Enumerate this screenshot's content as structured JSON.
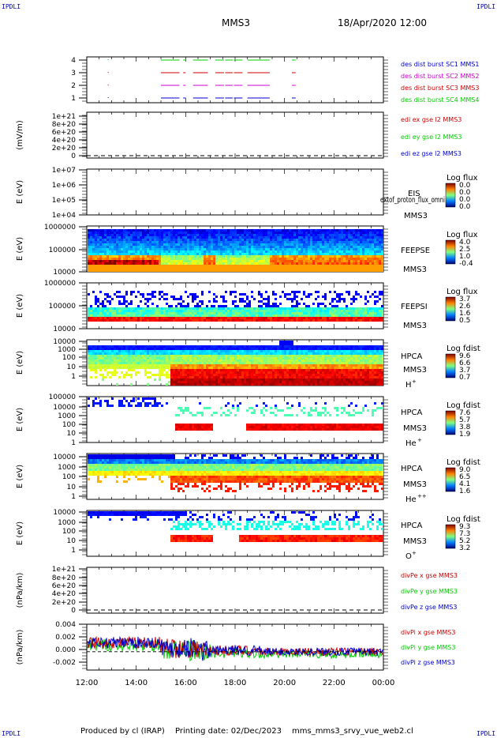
{
  "header": {
    "corner_label": "IPDLI",
    "spacecraft": "MMS3",
    "datetime": "18/Apr/2020 12:00"
  },
  "footer": {
    "produced_by": "Produced by cl (IRAP)",
    "printing_date": "Printing date: 02/Dec/2023",
    "script_name": "mms_mms3_srvy_vue_web2.cl"
  },
  "colors": {
    "mms1": "#0000cc",
    "mms2": "#cc00cc",
    "mms3": "#cc0000",
    "mms4": "#00cc00",
    "x_component": "#cc0000",
    "y_component": "#00cc00",
    "z_component": "#0000cc"
  },
  "chart_data": [
    {
      "type": "line",
      "panel": "burst-availability",
      "y_ticks": [
        "4",
        "3",
        "2",
        "1"
      ],
      "series": [
        {
          "name": "des dist burst SC1 MMS1",
          "level": 1,
          "color": "#0000cc",
          "intervals": [
            [
              15.0,
              15.75
            ],
            [
              15.9,
              16.0
            ],
            [
              16.3,
              16.9
            ],
            [
              17.2,
              17.55
            ],
            [
              17.6,
              17.9
            ],
            [
              17.95,
              18.3
            ],
            [
              18.5,
              19.4
            ],
            [
              20.3,
              20.45
            ]
          ]
        },
        {
          "name": "des dist burst SC2 MMS2",
          "level": 2,
          "color": "#cc00cc",
          "intervals": [
            [
              15.0,
              15.75
            ],
            [
              15.9,
              16.0
            ],
            [
              16.3,
              16.9
            ],
            [
              17.2,
              17.55
            ],
            [
              17.6,
              17.9
            ],
            [
              17.95,
              18.3
            ],
            [
              18.5,
              19.4
            ],
            [
              20.3,
              20.45
            ]
          ]
        },
        {
          "name": "des dist burst SC3 MMS3",
          "level": 3,
          "color": "#cc0000",
          "intervals": [
            [
              15.0,
              15.75
            ],
            [
              15.9,
              16.0
            ],
            [
              16.3,
              16.9
            ],
            [
              17.2,
              17.55
            ],
            [
              17.6,
              17.9
            ],
            [
              17.95,
              18.3
            ],
            [
              18.5,
              19.4
            ],
            [
              20.3,
              20.45
            ]
          ]
        },
        {
          "name": "des dist burst SC4 MMS4",
          "level": 4,
          "color": "#00cc00",
          "intervals": [
            [
              15.0,
              15.75
            ],
            [
              15.9,
              16.0
            ],
            [
              16.3,
              16.9
            ],
            [
              17.2,
              17.55
            ],
            [
              17.6,
              17.9
            ],
            [
              17.95,
              18.3
            ],
            [
              18.5,
              19.4
            ],
            [
              20.3,
              20.45
            ]
          ]
        }
      ]
    },
    {
      "type": "line",
      "panel": "edi-electric-field",
      "ylabel": "(mV/m)",
      "y_ticks": [
        "1e+21",
        "8e+20",
        "6e+20",
        "4e+20",
        "2e+20",
        "0"
      ],
      "series": [
        {
          "name": "edi ex gse l2 MMS3",
          "color": "#cc0000"
        },
        {
          "name": "edi ey gse l2 MMS3",
          "color": "#00cc00"
        },
        {
          "name": "edi ez gse l2 MMS3",
          "color": "#0000cc"
        }
      ]
    },
    {
      "type": "heatmap",
      "panel": "eis",
      "ylabel": "E (eV)",
      "y_ticks": [
        "1e+07",
        "1e+06",
        "1e+05",
        "1e+04"
      ],
      "labels": [
        "EIS",
        "MMS3"
      ],
      "overlay_text": "extof_proton_flux_omni",
      "colorbar": {
        "title": "Log flux",
        "ticks": [
          "0.0",
          "0.0",
          "0.0",
          "0.0"
        ]
      }
    },
    {
      "type": "heatmap",
      "panel": "feeps-electron",
      "ylabel": "E (eV)",
      "y_ticks": [
        "1000000",
        "100000",
        "10000"
      ],
      "labels": [
        "FEEPSE",
        "MMS3"
      ],
      "colorbar": {
        "title": "Log flux",
        "ticks": [
          "4.0",
          "2.5",
          "1.0",
          "-0.4"
        ]
      }
    },
    {
      "type": "heatmap",
      "panel": "feeps-ion",
      "ylabel": "E (eV)",
      "y_ticks": [
        "1000000",
        "100000",
        "10000"
      ],
      "labels": [
        "FEEPSI",
        "MMS3"
      ],
      "colorbar": {
        "title": "Log flux",
        "ticks": [
          "3.7",
          "2.6",
          "1.6",
          "0.5"
        ]
      }
    },
    {
      "type": "heatmap",
      "panel": "hpca-h",
      "ylabel": "E (eV)",
      "y_ticks": [
        "10000",
        "1000",
        "100",
        "10",
        "1"
      ],
      "labels": [
        "HPCA",
        "MMS3"
      ],
      "species": "H",
      "charge": "+",
      "colorbar": {
        "title": "Log fdist",
        "ticks": [
          "9.6",
          "6.6",
          "3.7",
          "0.7"
        ]
      }
    },
    {
      "type": "heatmap",
      "panel": "hpca-he1",
      "ylabel": "E (eV)",
      "y_ticks": [
        "100000",
        "10000",
        "1000",
        "100",
        "10",
        "1"
      ],
      "labels": [
        "HPCA",
        "MMS3"
      ],
      "species": "He",
      "charge": "+",
      "colorbar": {
        "title": "Log fdist",
        "ticks": [
          "7.6",
          "5.7",
          "3.8",
          "1.9"
        ]
      }
    },
    {
      "type": "heatmap",
      "panel": "hpca-he2",
      "ylabel": "E (eV)",
      "y_ticks": [
        "10000",
        "1000",
        "100",
        "10",
        "1"
      ],
      "labels": [
        "HPCA",
        "MMS3"
      ],
      "species": "He",
      "charge": "++",
      "colorbar": {
        "title": "Log fdist",
        "ticks": [
          "9.0",
          "6.5",
          "4.1",
          "1.6"
        ]
      }
    },
    {
      "type": "heatmap",
      "panel": "hpca-o",
      "ylabel": "E (eV)",
      "y_ticks": [
        "10000",
        "1000",
        "100",
        "10",
        "1"
      ],
      "labels": [
        "HPCA",
        "MMS3"
      ],
      "species": "O",
      "charge": "+",
      "colorbar": {
        "title": "Log fdist",
        "ticks": [
          "9.3",
          "7.3",
          "5.2",
          "3.2"
        ]
      }
    },
    {
      "type": "line",
      "panel": "div-pe",
      "ylabel": "(nPa/km)",
      "y_ticks": [
        "1e+21",
        "8e+20",
        "6e+20",
        "4e+20",
        "2e+20",
        "0"
      ],
      "series": [
        {
          "name": "divPe x gse MMS3",
          "color": "#cc0000"
        },
        {
          "name": "divPe y gse MMS3",
          "color": "#00cc00"
        },
        {
          "name": "divPe z gse MMS3",
          "color": "#0000cc"
        }
      ]
    },
    {
      "type": "line",
      "panel": "div-pi",
      "ylabel": "(nPa/km)",
      "y_ticks": [
        "0.004",
        "0.002",
        "0.000",
        "-0.002"
      ],
      "ylim": [
        -0.0028,
        0.0042
      ],
      "series": [
        {
          "name": "divPi x gse MMS3",
          "color": "#cc0000"
        },
        {
          "name": "divPi y gse MMS3",
          "color": "#00cc00"
        },
        {
          "name": "divPi z gse MMS3",
          "color": "#0000cc"
        }
      ]
    }
  ],
  "x_axis": {
    "ticks": [
      "12:00",
      "14:00",
      "16:00",
      "18:00",
      "20:00",
      "22:00",
      "00:00"
    ],
    "xlim": [
      12,
      24
    ]
  }
}
